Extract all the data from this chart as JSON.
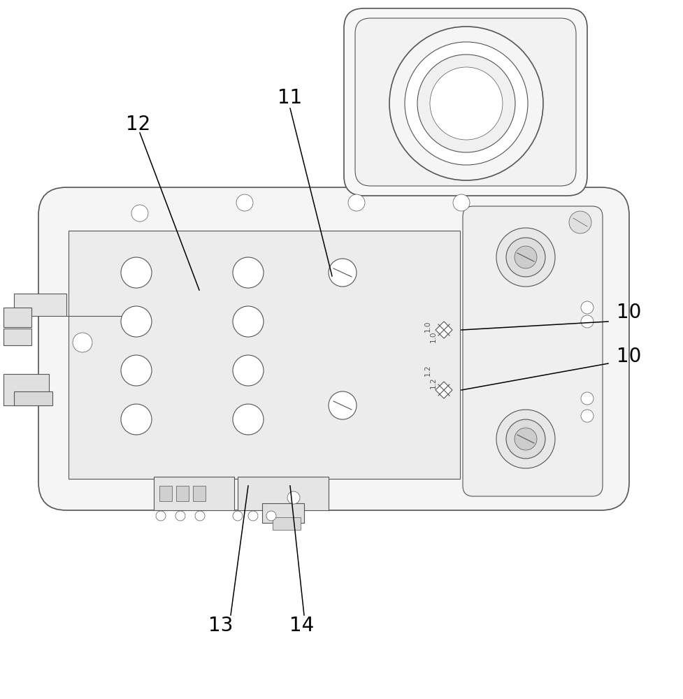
{
  "bg": "#ffffff",
  "lc": "#555555",
  "lc2": "#777777",
  "lw": 1.2,
  "lw2": 0.8,
  "lw3": 0.5,
  "fig_w": 9.78,
  "fig_h": 10.0,
  "dpi": 100
}
